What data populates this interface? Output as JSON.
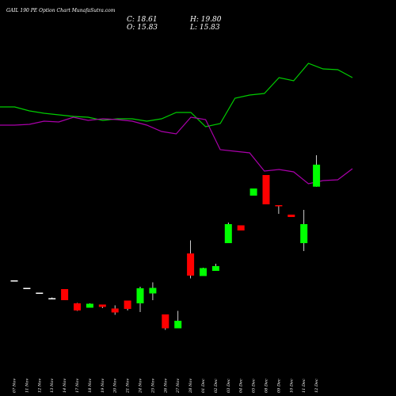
{
  "title": "GAIL 190 PE Option Chart MunafaSutra.com",
  "ohlc": {
    "c_label": "C: 18.61",
    "h_label": "H: 19.80",
    "o_label": "O: 15.83",
    "l_label": "L: 15.83"
  },
  "colors": {
    "background": "#000000",
    "up": "#00ff00",
    "down": "#ff0000",
    "neutral": "#ffffff",
    "line_green": "#00cc00",
    "line_purple": "#aa00aa"
  },
  "chart_data": {
    "type": "candlestick",
    "title": "GAIL 190 PE Option Chart MunafaSutra.com",
    "categories": [
      "07 Nov",
      "11 Nov",
      "12 Nov",
      "13 Nov",
      "14 Nov",
      "17 Nov",
      "18 Nov",
      "19 Nov",
      "20 Nov",
      "21 Nov",
      "24 Nov",
      "25 Nov",
      "26 Nov",
      "27 Nov",
      "28 Nov",
      "01 Dec",
      "02 Dec",
      "03 Dec",
      "04 Dec",
      "05 Dec",
      "08 Dec",
      "09 Dec",
      "10 Dec",
      "11 Dec",
      "12 Dec"
    ],
    "candles": [
      {
        "o": 4.0,
        "h": 4.0,
        "l": 4.0,
        "c": 4.0
      },
      {
        "o": 3.05,
        "h": 3.05,
        "l": 3.05,
        "c": 3.05
      },
      {
        "o": 2.45,
        "h": 2.45,
        "l": 2.45,
        "c": 2.45
      },
      {
        "o": 1.75,
        "h": 1.85,
        "l": 1.65,
        "c": 1.75
      },
      {
        "o": 2.9,
        "h": 2.9,
        "l": 1.5,
        "c": 1.5
      },
      {
        "o": 1.1,
        "h": 1.15,
        "l": 0.15,
        "c": 0.2
      },
      {
        "o": 0.55,
        "h": 1.1,
        "l": 0.55,
        "c": 1.05
      },
      {
        "o": 0.95,
        "h": 0.95,
        "l": 0.5,
        "c": 0.65
      },
      {
        "o": 0.45,
        "h": 0.85,
        "l": -0.35,
        "c": -0.05
      },
      {
        "o": 1.45,
        "h": 1.45,
        "l": 0.2,
        "c": 0.4
      },
      {
        "o": 1.1,
        "h": 3.2,
        "l": 0.0,
        "c": 3.0
      },
      {
        "o": 2.35,
        "h": 3.75,
        "l": 1.5,
        "c": 3.05
      },
      {
        "o": -0.3,
        "h": -0.3,
        "l": -2.25,
        "c": -2.05
      },
      {
        "o": -2.05,
        "h": 0.15,
        "l": -2.05,
        "c": -1.1
      },
      {
        "o": 7.4,
        "h": 9.05,
        "l": 4.25,
        "c": 4.6
      },
      {
        "o": 4.55,
        "h": 5.6,
        "l": 4.55,
        "c": 5.55
      },
      {
        "o": 5.2,
        "h": 6.1,
        "l": 5.2,
        "c": 5.8
      },
      {
        "o": 8.7,
        "h": 11.3,
        "l": 8.7,
        "c": 11.1
      },
      {
        "o": 10.95,
        "h": 10.95,
        "l": 10.3,
        "c": 10.3
      },
      {
        "o": 14.7,
        "h": 15.6,
        "l": 14.7,
        "c": 15.6
      },
      {
        "o": 17.3,
        "h": 17.3,
        "l": 13.6,
        "c": 13.6
      },
      {
        "o": 13.5,
        "h": 13.5,
        "l": 12.4,
        "c": 13.4
      },
      {
        "o": 12.3,
        "h": 12.3,
        "l": 12.0,
        "c": 12.0
      },
      {
        "o": 8.7,
        "h": 12.9,
        "l": 7.7,
        "c": 11.1
      },
      {
        "o": 15.83,
        "h": 19.8,
        "l": 15.83,
        "c": 18.61
      }
    ],
    "series": [
      {
        "values": [
          135,
          135,
          140,
          143,
          145,
          147,
          148,
          152,
          150,
          150,
          153,
          150,
          142,
          142,
          160,
          156,
          124,
          120,
          118,
          98,
          102,
          80,
          87,
          88,
          98
        ]
      },
      {
        "values": [
          158,
          158,
          157,
          153,
          154,
          148,
          152,
          150,
          151,
          153,
          158,
          166,
          169,
          148,
          151,
          189,
          191,
          193,
          216,
          214,
          217,
          232,
          228,
          227,
          213
        ]
      }
    ]
  }
}
